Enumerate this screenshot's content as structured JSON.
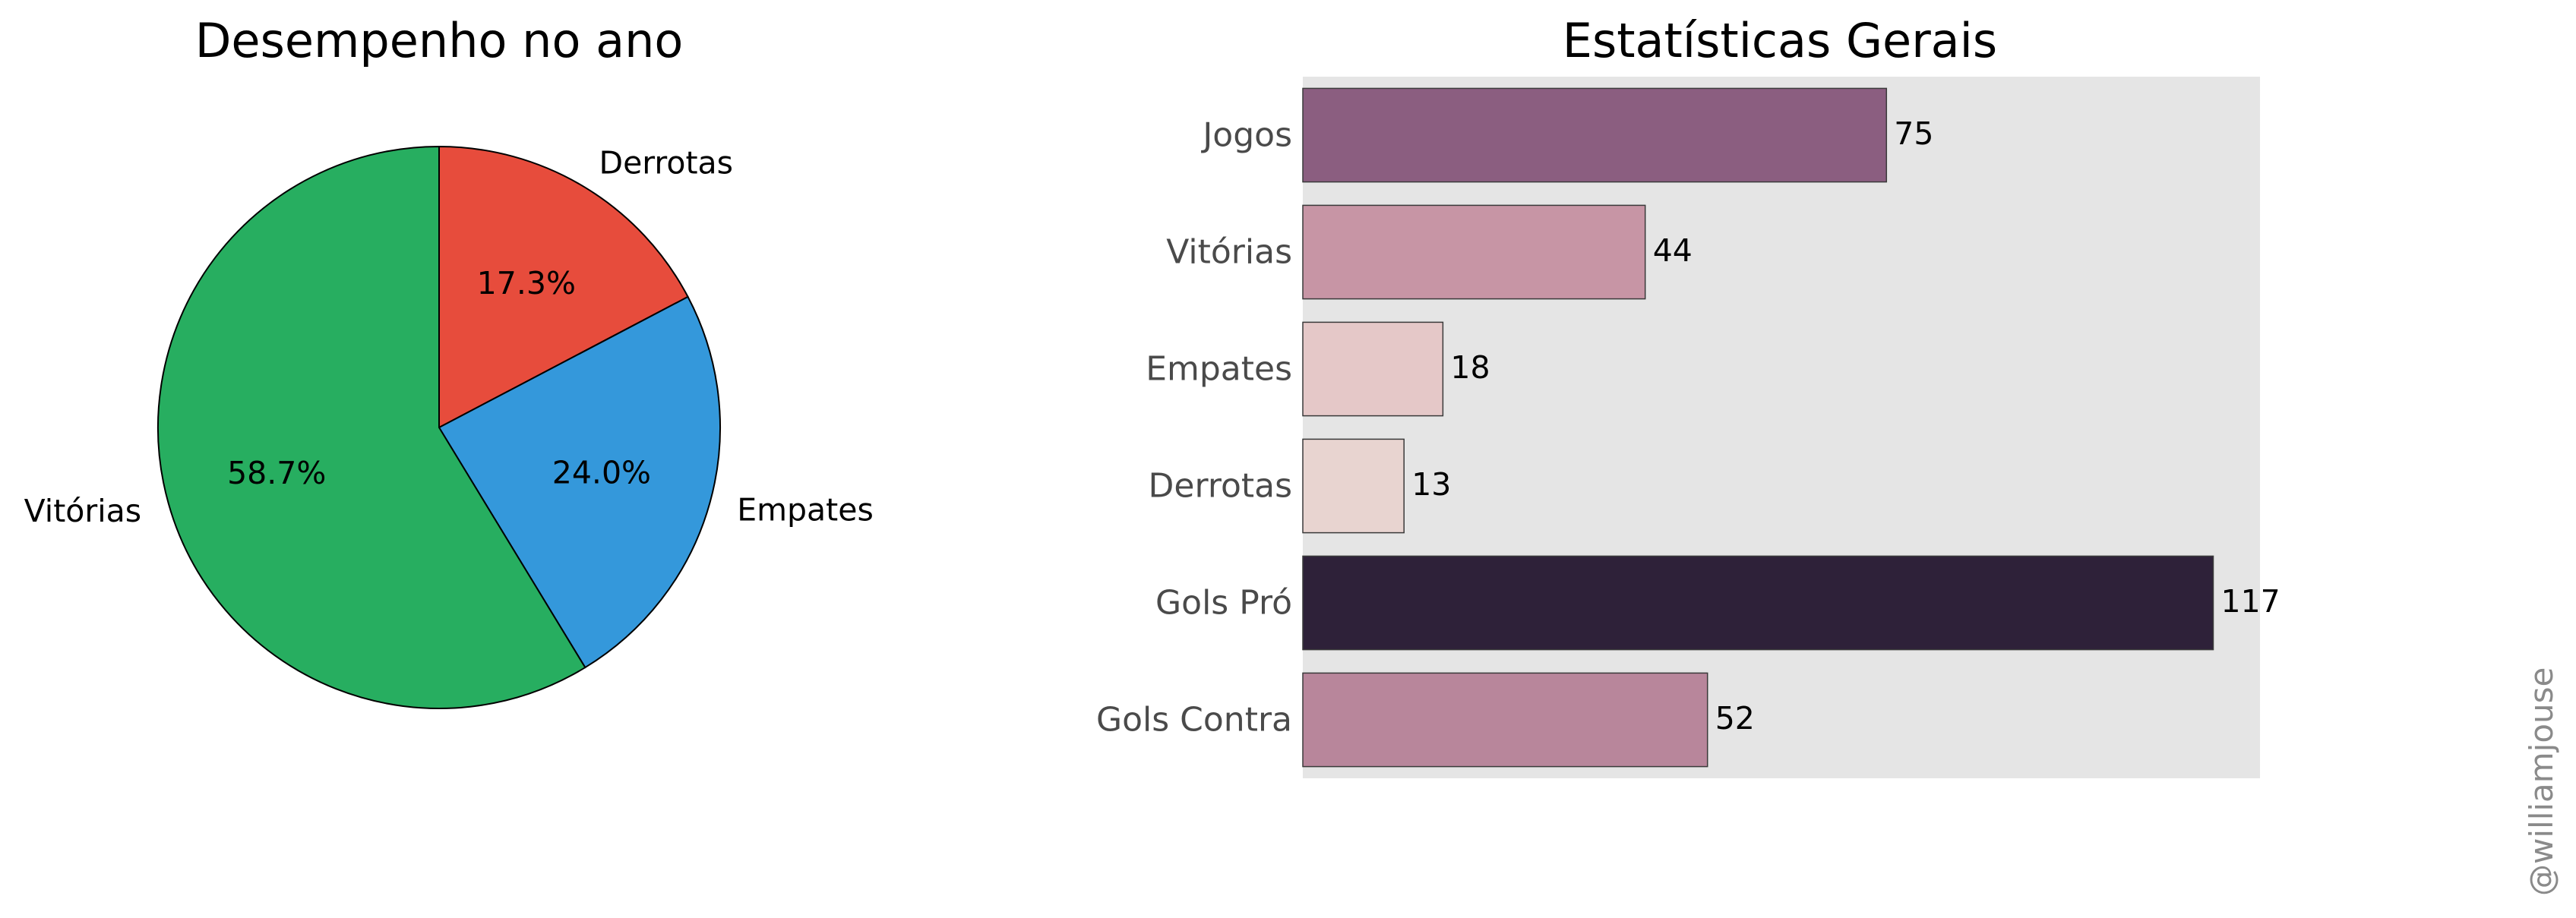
{
  "watermark": "@williamjouse",
  "chart_data": [
    {
      "type": "pie",
      "title": "Desempenho no ano",
      "slices": [
        {
          "label": "Derrotas",
          "value": 17.3,
          "pct_label": "17.3%",
          "color": "#e74c3c"
        },
        {
          "label": "Empates",
          "value": 24.0,
          "pct_label": "24.0%",
          "color": "#3498db"
        },
        {
          "label": "Vitórias",
          "value": 58.7,
          "pct_label": "58.7%",
          "color": "#27ae60"
        }
      ],
      "start_angle_deg": 90,
      "direction": "clockwise",
      "edge_color": "#000000"
    },
    {
      "type": "bar",
      "orientation": "horizontal",
      "title": "Estatísticas Gerais",
      "categories": [
        "Jogos",
        "Vitórias",
        "Empates",
        "Derrotas",
        "Gols Pró",
        "Gols Contra"
      ],
      "values": [
        75,
        44,
        18,
        13,
        117,
        52
      ],
      "colors": [
        "#8b5e80",
        "#c795a5",
        "#e5c8c8",
        "#e8d4d0",
        "#2e2139",
        "#b8869b"
      ],
      "xlim": [
        0,
        123
      ],
      "grid": false,
      "background": "#e5e5e5"
    }
  ]
}
